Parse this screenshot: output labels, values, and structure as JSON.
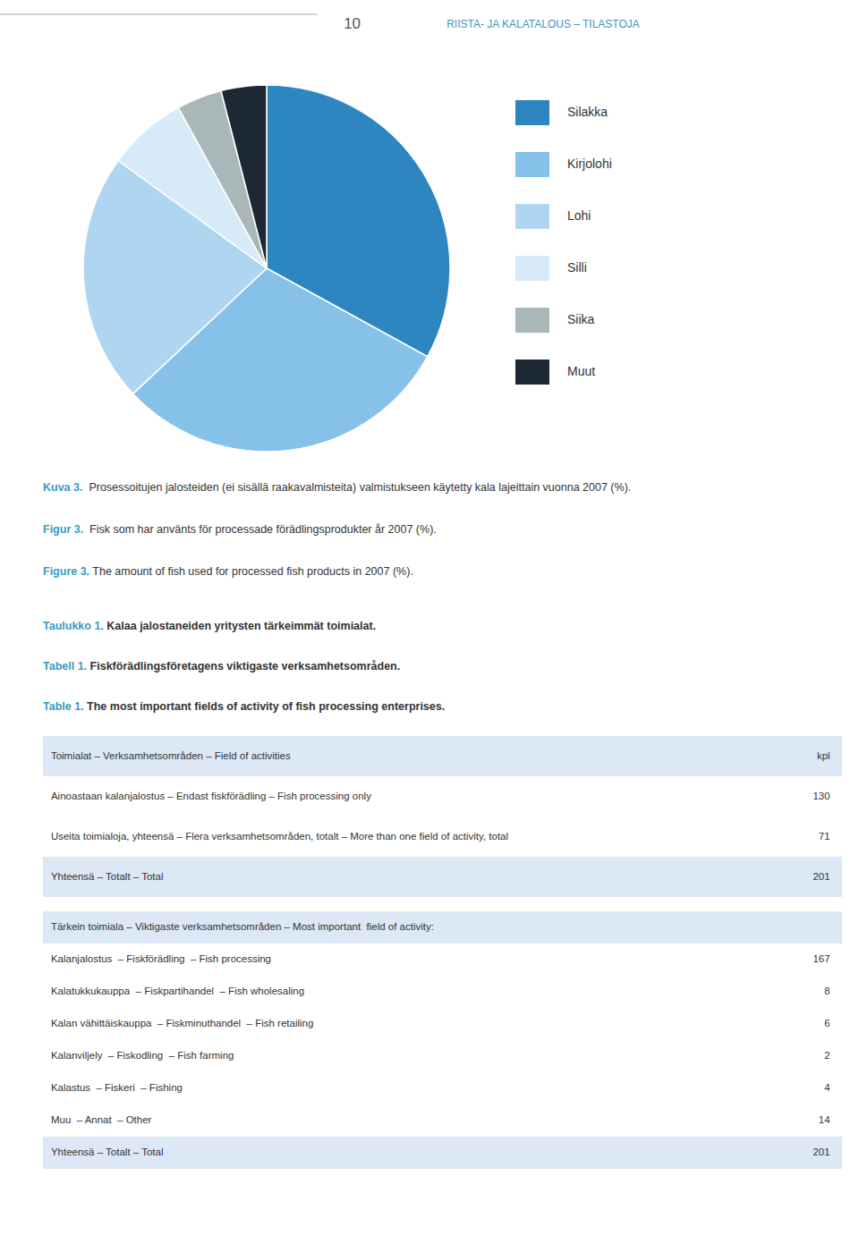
{
  "chart_data": {
    "type": "pie",
    "categories": [
      "Silakka",
      "Kirjolohi",
      "Lohi",
      "Silli",
      "Siika",
      "Muut"
    ],
    "values": [
      33,
      30,
      22,
      7,
      4,
      4
    ],
    "colors": [
      "#2e86c1",
      "#85c1e9",
      "#aed6f1",
      "#d6eaf8",
      "#aab7b8",
      "#1c2833"
    ],
    "legend": "right"
  },
  "page": {
    "page_number": "10",
    "header_text": "RIISTA- JA KALATALOUS – TILASTOJA",
    "header_color": "#3a9abf",
    "caption_color": "#3a9abf",
    "body_color": "#333333",
    "table_bg_color": "#dce8f5",
    "captions": [
      {
        "label": "Kuva 3.",
        "text": "  Prosessoitujen jalosteiden (ei sisällä raakavalmisteita) valmistukseen käytetty kala lajeittain vuonna 2007 (%)."
      },
      {
        "label": "Figur 3.",
        "text": "  Fisk som har använts för processade förädlingsprodukter år 2007 (%)."
      },
      {
        "label": "Figure 3.",
        "text": " The amount of fish used for processed fish products in 2007 (%)."
      }
    ],
    "table_titles": [
      {
        "label": "Taulukko 1.",
        "text": " Kalaa jalostaneiden yritysten tärkeimmät toimialat."
      },
      {
        "label": "Tabell 1.",
        "text": " Fiskförädlingsföretagens viktigaste verksamhetsområden."
      },
      {
        "label": "Table 1.",
        "text": " The most important fields of activity of fish processing enterprises."
      }
    ],
    "tables": [
      {
        "header": [
          "Toimialat – Verksamhetsområden – Field of activities",
          "kpl"
        ],
        "rows": [
          [
            "Ainoastaan kalanjalostus – Endast fiskförädling – Fish processing only",
            "130"
          ],
          [
            "Useita toimialoja, yhteensä – Flera verksamhetsområden, totalt – More than one field of activity, total",
            "71"
          ],
          [
            "Yhteensä – Totalt – Total",
            "201"
          ]
        ]
      },
      {
        "header": [
          "Tärkein toimiala – Viktigaste verksamhetsområden – Most important  field of activity:"
        ],
        "rows": [
          [
            "Kalanjalostus  – Fiskförädling  – Fish processing",
            "167"
          ],
          [
            "Kalatukkukauppa  – Fiskpartihandel  – Fish wholesaling",
            "8"
          ],
          [
            "Kalan vähittäiskauppa  – Fiskminuthandel  – Fish retailing",
            "6"
          ],
          [
            "Kalanviljely  – Fiskodling  – Fish farming",
            "2"
          ],
          [
            "Kalastus  – Fiskeri  – Fishing",
            "4"
          ],
          [
            "Muu  – Annat  – Other",
            "14"
          ],
          [
            "Yhteensä – Totalt – Total",
            "201"
          ]
        ]
      }
    ]
  }
}
